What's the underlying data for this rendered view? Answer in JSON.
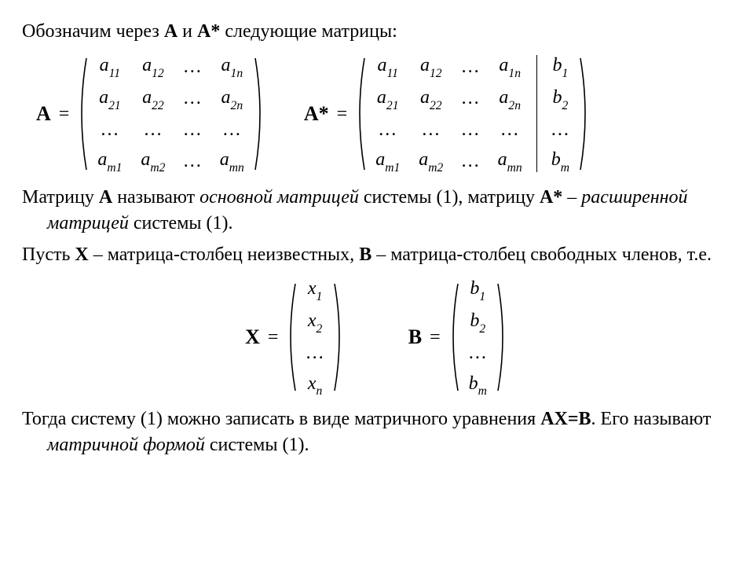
{
  "line1": {
    "pre": "Обозначим через ",
    "A": "A",
    "mid1": "  и  ",
    "Astar": "A*",
    "post": "  следующие матрицы:"
  },
  "matrixA": {
    "label": "A",
    "eq": "=",
    "rows": [
      [
        "a|11",
        "a|12",
        "…",
        "a|1n"
      ],
      [
        "a|21",
        "a|22",
        "…",
        "a|2n"
      ],
      [
        "…",
        "…",
        "…",
        "…"
      ],
      [
        "a|m1",
        "a|m2",
        "…",
        "a|mn"
      ]
    ]
  },
  "matrixAstar": {
    "label": "A*",
    "eq": "=",
    "rows": [
      [
        "a|11",
        "a|12",
        "…",
        "a|1n"
      ],
      [
        "a|21",
        "a|22",
        "…",
        "a|2n"
      ],
      [
        "…",
        "…",
        "…",
        "…"
      ],
      [
        "a|m1",
        "a|m2",
        "…",
        "a|mn"
      ]
    ],
    "aug": [
      "b|1",
      "b|2",
      "…",
      "b|m"
    ]
  },
  "para2": {
    "t1": "Матрицу   ",
    "A": "A",
    "t2": "  называют ",
    "it1": "основной матрицей",
    "t3": " системы  (1), матрицу   ",
    "Astar": "A*",
    "t4": " – ",
    "it2": "расширенной матрицей",
    "t5": " системы (1)."
  },
  "para3": {
    "t1": "Пусть   ",
    "X": "X",
    "t2": " – матрица-столбец неизвестных,  ",
    "B": "B",
    "t3": " – матрица-столбец свободных членов, т.е."
  },
  "matrixX": {
    "label": "X",
    "eq": "=",
    "col": [
      "x|1",
      "x|2",
      "…",
      "x|n"
    ]
  },
  "matrixB": {
    "label": "B",
    "eq": "=",
    "col": [
      "b|1",
      "b|2",
      "…",
      "b|m"
    ]
  },
  "para4": {
    "t1": "Тогда систему (1) можно записать в виде матричного уравнения ",
    "eq": "AX=B",
    "t2": ".  Его называют ",
    "it": "матричной формой",
    "t3": " системы  (1)."
  },
  "paren_height_big": 146,
  "paren_height_small": 140,
  "paren_width": 16,
  "paren_stroke": 1.6,
  "paren_color": "#000000"
}
